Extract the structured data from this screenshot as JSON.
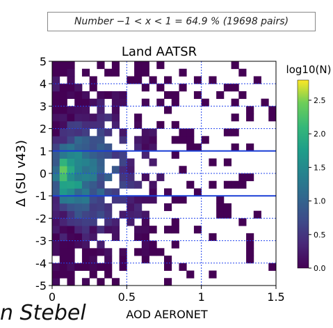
{
  "annotation": "Number −1 < x < 1 = 64.9 % (19698 pairs)",
  "watermark": "n Stebel",
  "colors": {
    "hline_solid": "#1a3fd6",
    "grid_dotted": "#2244ee",
    "colormap": "viridis"
  },
  "chart_data": {
    "type": "heatmap",
    "title": "Land AATSR",
    "xlabel": "AOD AERONET",
    "ylabel": "Δ (SU v43)",
    "xlim": [
      0,
      1.5
    ],
    "ylim": [
      -5,
      5
    ],
    "x_ticks": [
      0,
      0.5,
      1,
      1.5
    ],
    "x_tick_labels": [
      "0",
      "0.5",
      "1",
      "1.5"
    ],
    "y_ticks": [
      5,
      4,
      3,
      2,
      1,
      0,
      -1,
      -2,
      -3,
      -4,
      -5
    ],
    "y_tick_labels": [
      "5",
      "4",
      "3",
      "2",
      "1",
      "0",
      "-1",
      "-2",
      "-3",
      "-4",
      "-5"
    ],
    "grid": true,
    "reference_lines_y": [
      1,
      -1
    ],
    "colorbar": {
      "label": "log10(N)",
      "range": [
        0,
        2.8
      ],
      "ticks": [
        0.0,
        0.5,
        1.0,
        1.5,
        2.0,
        2.5
      ],
      "tick_labels": [
        "0.0",
        "0.5",
        "1.0",
        "1.5",
        "2.0",
        "2.5"
      ]
    },
    "grid_shape": {
      "x_bins": 30,
      "y_bins": 30,
      "x_bin_width": 0.05,
      "y_bin_width": 0.3333
    },
    "approx_bins": "log10(N) values per (x,y) bin estimated from color; roughly peaked near x=0.05, y=0 (~2.8), falling off with distance; sparse scattered cells at high AOD"
  }
}
